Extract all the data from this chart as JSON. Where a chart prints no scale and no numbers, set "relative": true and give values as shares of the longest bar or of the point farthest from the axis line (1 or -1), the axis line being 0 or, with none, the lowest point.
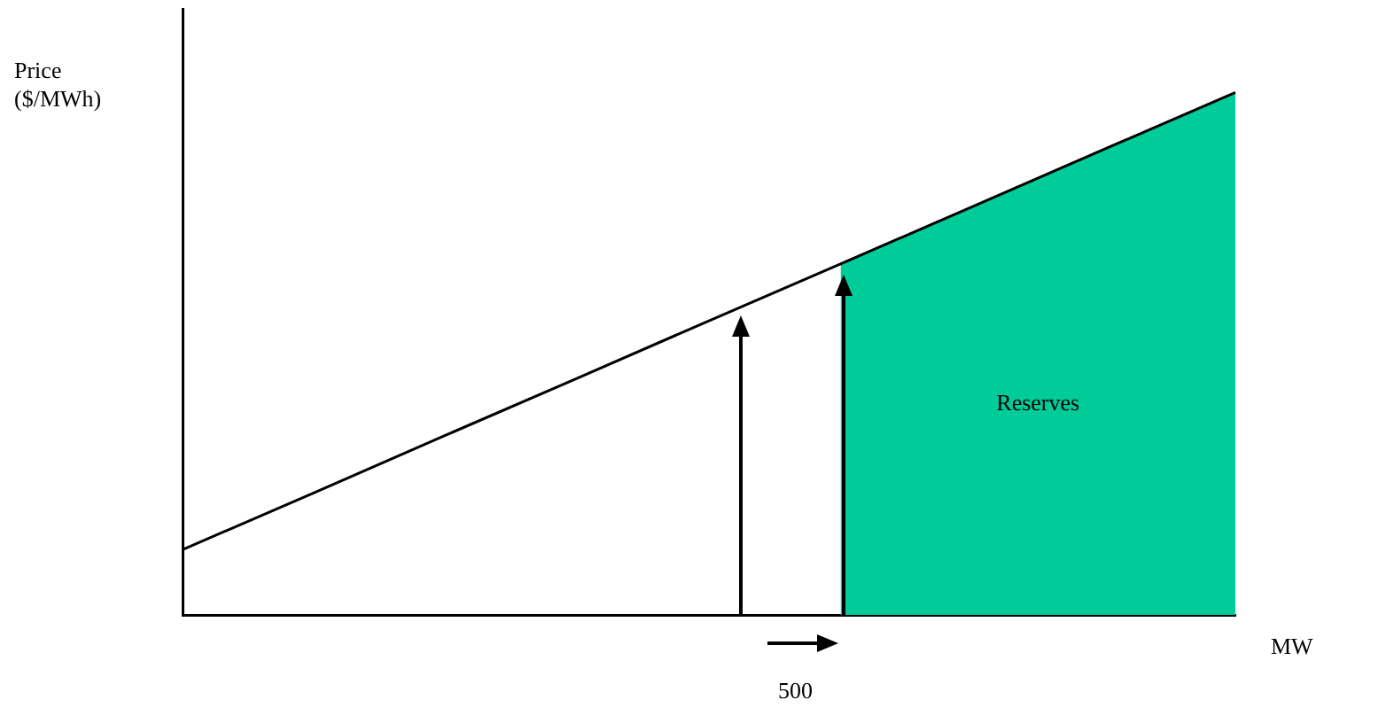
{
  "chart_data": {
    "type": "line",
    "relative": true,
    "ylabel": "Price\n($/MWh)",
    "xlabel": "MW",
    "categories": [
      null,
      null,
      null,
      null,
      null,
      null,
      null,
      null,
      null
    ],
    "series": [
      {
        "type": "area",
        "name": "Reserves",
        "color": "#00cc99",
        "values": [
          null,
          null,
          null,
          null,
          null,
          0.672,
          0.781,
          0.891,
          1
        ]
      },
      {
        "type": "line",
        "color": "#000000",
        "values": [
          0.125,
          0.234,
          0.344,
          0.453,
          0.563,
          0.672,
          0.781,
          0.891,
          1
        ]
      }
    ],
    "annotations": [
      "500"
    ]
  }
}
